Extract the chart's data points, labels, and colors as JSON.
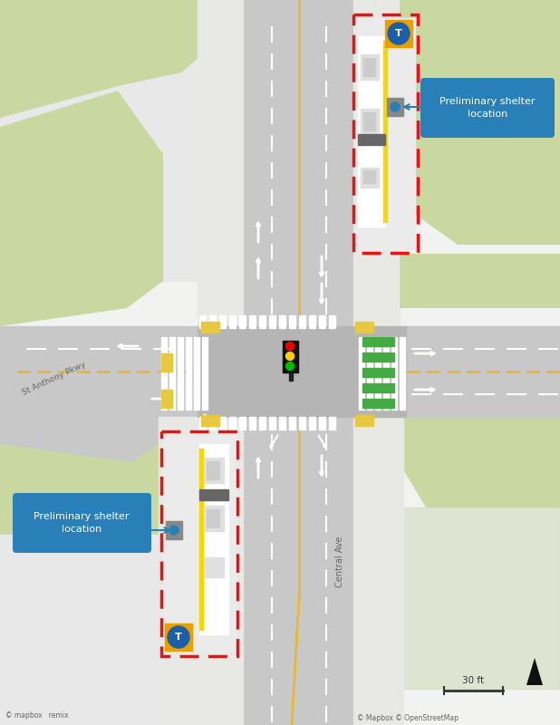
{
  "fig_width": 6.18,
  "fig_height": 8.0,
  "bg_color": "#f2f2f0",
  "road_color": "#c8c8c8",
  "road_mid": "#b8b8b8",
  "sidewalk_color": "#e8e8e4",
  "grass_color": "#c8d8a0",
  "grass_lt": "#d8e8b0",
  "intersection_color": "#b8b8b8",
  "crosswalk_color": "#ffffff",
  "platform_color": "#ebebeb",
  "bus_body": "#ffffff",
  "bus_stripe": "#f5d800",
  "red_dash": "#ee1111",
  "label_bg": "#2980b9",
  "label_text": "#ffffff",
  "arrow_color": "#2980b9",
  "traffic_red": "#ee0000",
  "traffic_yellow": "#ffcc00",
  "traffic_green": "#00bb00",
  "north_arrow_color": "#111111",
  "scale_color": "#333333",
  "yellow_line": "#e8b830",
  "white_dash": "#ffffff",
  "green_stripe": "#44aa44",
  "bump_color": "#e8c840",
  "scale_label": "30 ft",
  "mapbox_text": "© Mapbox © OpenStreetMap",
  "remix_text": "© mapbox   remix",
  "central_ave_label": "Central Ave",
  "st_anthony_label": "St Anthony Pkwy",
  "label1_text": "Preliminary shelter\nlocation",
  "label2_text": "Preliminary shelter\nlocation"
}
